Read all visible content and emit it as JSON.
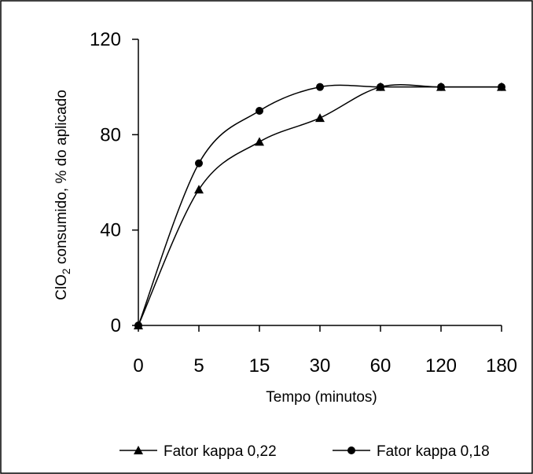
{
  "chart_data": {
    "type": "line",
    "x_categories": [
      "0",
      "5",
      "15",
      "30",
      "60",
      "120",
      "180"
    ],
    "xlabel": "Tempo (minutos)",
    "ylabel": {
      "prefix": "ClO",
      "subscript": "2",
      "suffix": " consumido, % do aplicado"
    },
    "ylim": [
      0,
      120
    ],
    "yticks": [
      "0",
      "40",
      "80",
      "120"
    ],
    "grid": false,
    "legend_position": "bottom",
    "series": [
      {
        "name": "Fator kappa 0,22",
        "marker": "triangle",
        "values": [
          0,
          57,
          77,
          87,
          100,
          100,
          100
        ]
      },
      {
        "name": "Fator kappa 0,18",
        "marker": "circle",
        "values": [
          0,
          68,
          90,
          100,
          100,
          100,
          100
        ]
      }
    ]
  }
}
